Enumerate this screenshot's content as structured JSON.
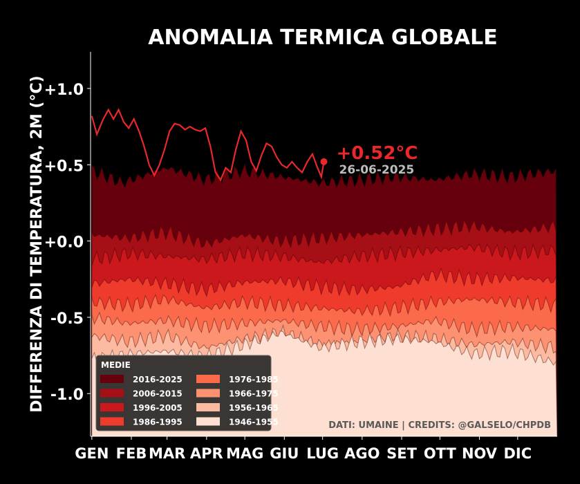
{
  "chart_data": {
    "type": "area",
    "title": "ANOMALIA TERMICA GLOBALE",
    "ylabel": "DIFFERENZA DI TEMPERATURA, 2M (°C)",
    "xlabel": "",
    "ylim": [
      -1.28,
      1.24
    ],
    "xlim": [
      0,
      366
    ],
    "y_ticks": [
      {
        "value": 1.0,
        "label": "+1.0"
      },
      {
        "value": 0.5,
        "label": "+0.5"
      },
      {
        "value": 0.0,
        "label": "+0.0"
      },
      {
        "value": -0.5,
        "label": "-0.5"
      },
      {
        "value": -1.0,
        "label": "-1.0"
      }
    ],
    "months": [
      {
        "label": "GEN",
        "day": 1
      },
      {
        "label": "FEB",
        "day": 32
      },
      {
        "label": "MAR",
        "day": 60
      },
      {
        "label": "APR",
        "day": 91
      },
      {
        "label": "MAG",
        "day": 121
      },
      {
        "label": "GIU",
        "day": 152
      },
      {
        "label": "LUG",
        "day": 182
      },
      {
        "label": "AGO",
        "day": 213
      },
      {
        "label": "SET",
        "day": 244
      },
      {
        "label": "OTT",
        "day": 274
      },
      {
        "label": "NOV",
        "day": 305
      },
      {
        "label": "DIC",
        "day": 335
      }
    ],
    "legend_title": "MEDIE",
    "legend_position": "bottom-left",
    "bands": [
      {
        "name": "2016-2025",
        "color": "#67000d",
        "knots": [
          [
            1,
            0.46
          ],
          [
            25,
            0.38
          ],
          [
            60,
            0.48
          ],
          [
            90,
            0.4
          ],
          [
            120,
            0.46
          ],
          [
            150,
            0.42
          ],
          [
            180,
            0.38
          ],
          [
            210,
            0.4
          ],
          [
            240,
            0.42
          ],
          [
            270,
            0.4
          ],
          [
            300,
            0.44
          ],
          [
            330,
            0.42
          ],
          [
            366,
            0.46
          ]
        ]
      },
      {
        "name": "2006-2015",
        "color": "#a50f15",
        "knots": [
          [
            1,
            0.04
          ],
          [
            30,
            0.02
          ],
          [
            60,
            0.06
          ],
          [
            90,
            -0.02
          ],
          [
            120,
            0.04
          ],
          [
            150,
            0.0
          ],
          [
            180,
            0.02
          ],
          [
            210,
            0.04
          ],
          [
            240,
            0.06
          ],
          [
            270,
            0.08
          ],
          [
            300,
            0.1
          ],
          [
            330,
            0.06
          ],
          [
            366,
            0.1
          ]
        ]
      },
      {
        "name": "1996-2005",
        "color": "#cb181d",
        "knots": [
          [
            1,
            -0.12
          ],
          [
            30,
            -0.08
          ],
          [
            60,
            -0.1
          ],
          [
            90,
            -0.12
          ],
          [
            120,
            -0.08
          ],
          [
            150,
            -0.1
          ],
          [
            180,
            -0.14
          ],
          [
            210,
            -0.1
          ],
          [
            240,
            -0.08
          ],
          [
            270,
            -0.06
          ],
          [
            300,
            -0.04
          ],
          [
            330,
            -0.08
          ],
          [
            366,
            -0.06
          ]
        ]
      },
      {
        "name": "1986-1995",
        "color": "#ef3b2c",
        "knots": [
          [
            1,
            -0.28
          ],
          [
            30,
            -0.25
          ],
          [
            60,
            -0.28
          ],
          [
            90,
            -0.32
          ],
          [
            120,
            -0.27
          ],
          [
            150,
            -0.26
          ],
          [
            180,
            -0.3
          ],
          [
            210,
            -0.32
          ],
          [
            240,
            -0.3
          ],
          [
            270,
            -0.22
          ],
          [
            300,
            -0.25
          ],
          [
            330,
            -0.24
          ],
          [
            366,
            -0.26
          ]
        ]
      },
      {
        "name": "1976-1985",
        "color": "#fb6a4a",
        "knots": [
          [
            1,
            -0.4
          ],
          [
            30,
            -0.42
          ],
          [
            60,
            -0.38
          ],
          [
            90,
            -0.44
          ],
          [
            120,
            -0.4
          ],
          [
            150,
            -0.42
          ],
          [
            180,
            -0.44
          ],
          [
            210,
            -0.46
          ],
          [
            240,
            -0.44
          ],
          [
            270,
            -0.4
          ],
          [
            300,
            -0.38
          ],
          [
            330,
            -0.4
          ],
          [
            366,
            -0.42
          ]
        ]
      },
      {
        "name": "1966-1975",
        "color": "#fc9272",
        "knots": [
          [
            1,
            -0.5
          ],
          [
            30,
            -0.54
          ],
          [
            60,
            -0.52
          ],
          [
            90,
            -0.56
          ],
          [
            120,
            -0.54
          ],
          [
            150,
            -0.52
          ],
          [
            180,
            -0.56
          ],
          [
            210,
            -0.58
          ],
          [
            240,
            -0.56
          ],
          [
            270,
            -0.52
          ],
          [
            300,
            -0.58
          ],
          [
            330,
            -0.56
          ],
          [
            366,
            -0.58
          ]
        ]
      },
      {
        "name": "1956-1965",
        "color": "#fcbba1",
        "knots": [
          [
            1,
            -0.62
          ],
          [
            30,
            -0.66
          ],
          [
            60,
            -0.62
          ],
          [
            90,
            -0.7
          ],
          [
            120,
            -0.64
          ],
          [
            150,
            -0.6
          ],
          [
            180,
            -0.68
          ],
          [
            210,
            -0.66
          ],
          [
            240,
            -0.62
          ],
          [
            270,
            -0.64
          ],
          [
            300,
            -0.68
          ],
          [
            330,
            -0.66
          ],
          [
            366,
            -0.7
          ]
        ]
      },
      {
        "name": "1946-1955",
        "color": "#fee0d2",
        "knots": [
          [
            1,
            -0.78
          ],
          [
            30,
            -0.74
          ],
          [
            60,
            -0.72
          ],
          [
            90,
            -0.76
          ],
          [
            120,
            -0.68
          ],
          [
            150,
            -0.6
          ],
          [
            180,
            -0.7
          ],
          [
            210,
            -0.66
          ],
          [
            240,
            -0.64
          ],
          [
            270,
            -0.66
          ],
          [
            300,
            -0.74
          ],
          [
            330,
            -0.72
          ],
          [
            366,
            -0.8
          ]
        ]
      }
    ],
    "current_series": {
      "name": "2025",
      "color": "#e8282b",
      "values": [
        [
          1,
          0.82
        ],
        [
          5,
          0.7
        ],
        [
          10,
          0.8
        ],
        [
          14,
          0.86
        ],
        [
          18,
          0.8
        ],
        [
          22,
          0.86
        ],
        [
          26,
          0.78
        ],
        [
          30,
          0.74
        ],
        [
          34,
          0.8
        ],
        [
          38,
          0.72
        ],
        [
          42,
          0.62
        ],
        [
          46,
          0.5
        ],
        [
          50,
          0.43
        ],
        [
          54,
          0.5
        ],
        [
          58,
          0.6
        ],
        [
          62,
          0.72
        ],
        [
          66,
          0.77
        ],
        [
          70,
          0.76
        ],
        [
          74,
          0.73
        ],
        [
          78,
          0.75
        ],
        [
          82,
          0.73
        ],
        [
          86,
          0.72
        ],
        [
          90,
          0.74
        ],
        [
          94,
          0.62
        ],
        [
          98,
          0.45
        ],
        [
          102,
          0.4
        ],
        [
          106,
          0.48
        ],
        [
          110,
          0.45
        ],
        [
          114,
          0.6
        ],
        [
          118,
          0.72
        ],
        [
          122,
          0.66
        ],
        [
          126,
          0.52
        ],
        [
          130,
          0.46
        ],
        [
          134,
          0.56
        ],
        [
          138,
          0.64
        ],
        [
          142,
          0.62
        ],
        [
          146,
          0.55
        ],
        [
          150,
          0.5
        ],
        [
          154,
          0.48
        ],
        [
          158,
          0.52
        ],
        [
          162,
          0.48
        ],
        [
          166,
          0.45
        ],
        [
          170,
          0.52
        ],
        [
          174,
          0.57
        ],
        [
          178,
          0.48
        ],
        [
          181,
          0.42
        ],
        [
          183,
          0.52
        ]
      ],
      "last_value_label": "+0.52°C",
      "last_date_label": "26-06-2025"
    },
    "credit_text": "DATI: UMAINE | CREDITS: @GALSELO/CHPDB"
  }
}
